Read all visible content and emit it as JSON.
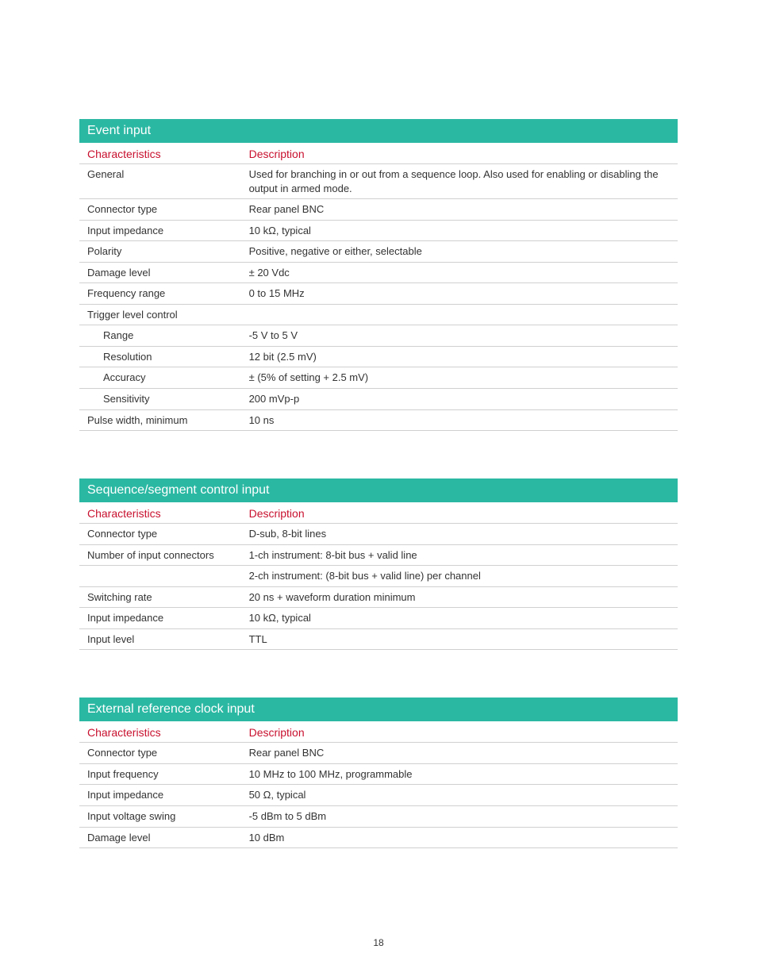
{
  "page_number": "18",
  "colors": {
    "header_bg": "#2bb8a3",
    "header_text": "#ffffff",
    "label_color": "#c8102e",
    "body_text": "#333333",
    "border": "#d0d0d0",
    "background": "#ffffff"
  },
  "tables": {
    "event_input": {
      "title": "Event input",
      "col_char": "Characteristics",
      "col_desc": "Description",
      "rows": [
        {
          "char": "General",
          "desc": "Used for branching in or out from a sequence loop. Also used for enabling or disabling the output in armed mode."
        },
        {
          "char": "Connector type",
          "desc": "Rear panel BNC"
        },
        {
          "char": "Input impedance",
          "desc": "10 kΩ, typical"
        },
        {
          "char": "Polarity",
          "desc": "Positive, negative or either, selectable"
        },
        {
          "char": "Damage level",
          "desc": "± 20 Vdc"
        },
        {
          "char": "Frequency range",
          "desc": "0 to 15 MHz"
        },
        {
          "char": "Trigger level control",
          "desc": ""
        },
        {
          "char": "Range",
          "desc": "-5 V to 5 V",
          "indent": true
        },
        {
          "char": "Resolution",
          "desc": "12 bit (2.5 mV)",
          "indent": true
        },
        {
          "char": "Accuracy",
          "desc": "± (5% of setting + 2.5 mV)",
          "indent": true
        },
        {
          "char": "Sensitivity",
          "desc": "200 mVp-p",
          "indent": true
        },
        {
          "char": "Pulse width, minimum",
          "desc": "10 ns"
        }
      ]
    },
    "sequence_segment": {
      "title": "Sequence/segment control input",
      "col_char": "Characteristics",
      "col_desc": "Description",
      "rows": [
        {
          "char": "Connector type",
          "desc": "D-sub, 8-bit lines"
        },
        {
          "char": "Number of input connectors",
          "desc": "1-ch instrument: 8-bit bus + valid line"
        },
        {
          "char": "",
          "desc": "2-ch instrument: (8-bit bus + valid line) per channel"
        },
        {
          "char": "Switching rate",
          "desc": "20 ns + waveform duration minimum"
        },
        {
          "char": "Input impedance",
          "desc": "10 kΩ, typical"
        },
        {
          "char": "Input level",
          "desc": "TTL"
        }
      ]
    },
    "external_ref": {
      "title": "External reference clock input",
      "col_char": "Characteristics",
      "col_desc": "Description",
      "rows": [
        {
          "char": "Connector type",
          "desc": "Rear panel BNC"
        },
        {
          "char": "Input frequency",
          "desc": "10 MHz to 100 MHz, programmable"
        },
        {
          "char": "Input impedance",
          "desc": "50 Ω, typical"
        },
        {
          "char": "Input voltage swing",
          "desc": "-5 dBm to 5 dBm"
        },
        {
          "char": "Damage level",
          "desc": "10 dBm"
        }
      ]
    }
  }
}
